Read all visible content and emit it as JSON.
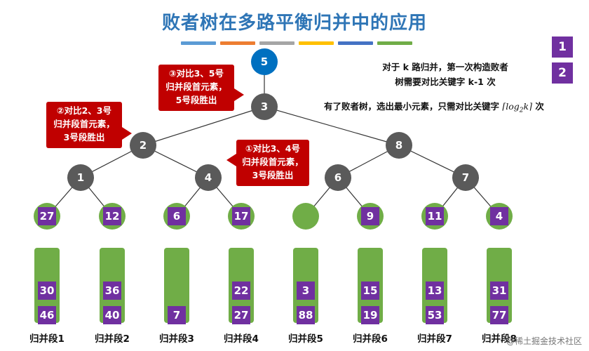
{
  "title": "败者树在多路平衡归并中的应用",
  "color_bars": [
    "#5b9bd5",
    "#ed7d31",
    "#a5a5a5",
    "#ffc000",
    "#4472c4",
    "#70ad47"
  ],
  "steps": [
    "1",
    "2"
  ],
  "notes": {
    "line1": "对于 k 路归并，第一次构造败者",
    "line2": "树需要对比关键字 k-1 次",
    "line3_prefix": "有了败者树，选出最小元素，只需对比关键字",
    "line3_formula": "⌈log",
    "line3_sub": "2",
    "line3_formula_end": "k⌉",
    "line3_suffix": "次"
  },
  "tree": {
    "root": "5",
    "level1": "3",
    "level2": [
      "2",
      "8"
    ],
    "level3": [
      "1",
      "4",
      "6",
      "7"
    ]
  },
  "leaves": [
    "27",
    "12",
    "6",
    "17",
    "",
    "9",
    "11",
    "4"
  ],
  "segments": [
    {
      "label": "归并段1",
      "values": [
        "30",
        "46"
      ]
    },
    {
      "label": "归并段2",
      "values": [
        "36",
        "40"
      ]
    },
    {
      "label": "归并段3",
      "values": [
        "7"
      ]
    },
    {
      "label": "归并段4",
      "values": [
        "22",
        "27"
      ]
    },
    {
      "label": "归并段5",
      "values": [
        "3",
        "88"
      ]
    },
    {
      "label": "归并段6",
      "values": [
        "15",
        "19"
      ]
    },
    {
      "label": "归并段7",
      "values": [
        "13",
        "53"
      ]
    },
    {
      "label": "归并段8",
      "values": [
        "31",
        "77"
      ]
    }
  ],
  "callouts": {
    "c3": [
      "③对比3、5号",
      "归并段首元素，",
      "5号段胜出"
    ],
    "c2": [
      "②对比2、3号",
      "归并段首元素，",
      "3号段胜出"
    ],
    "c1": [
      "①对比3、4号",
      "归并段首元素，",
      "3号段胜出"
    ]
  },
  "footer": "@稀土掘金技术社区"
}
